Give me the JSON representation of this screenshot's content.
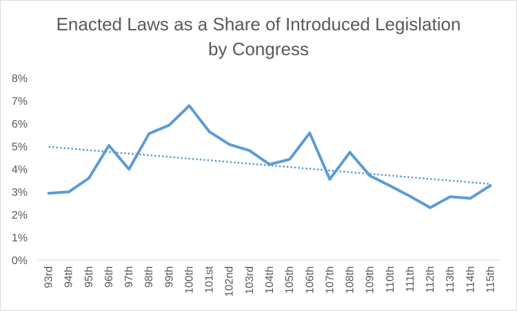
{
  "chart_data": {
    "type": "line",
    "title_lines": [
      "Enacted Laws as a Share of Introduced Legislation",
      "by Congress"
    ],
    "categories": [
      "93rd",
      "94th",
      "95th",
      "96th",
      "97th",
      "98th",
      "99th",
      "100th",
      "101st",
      "102nd",
      "103rd",
      "104th",
      "105th",
      "106th",
      "107th",
      "108th",
      "109th",
      "110th",
      "111th",
      "112th",
      "113th",
      "114th",
      "115th"
    ],
    "series": [
      {
        "values": [
          2.93,
          2.99,
          3.59,
          5.03,
          3.99,
          5.55,
          5.92,
          6.78,
          5.64,
          5.08,
          4.81,
          4.2,
          4.42,
          5.58,
          3.55,
          4.73,
          3.7,
          3.26,
          2.8,
          2.3,
          2.78,
          2.71,
          3.27
        ],
        "color": "#5b9bd5"
      }
    ],
    "trendline": {
      "type": "linear",
      "style": "dotted",
      "color": "#5b9bd5"
    },
    "y_ticks": [
      "0%",
      "1%",
      "2%",
      "3%",
      "4%",
      "5%",
      "6%",
      "7%",
      "8%"
    ],
    "ylim": [
      0,
      8
    ],
    "y_unit": "%",
    "grid": false,
    "legend": "none"
  }
}
